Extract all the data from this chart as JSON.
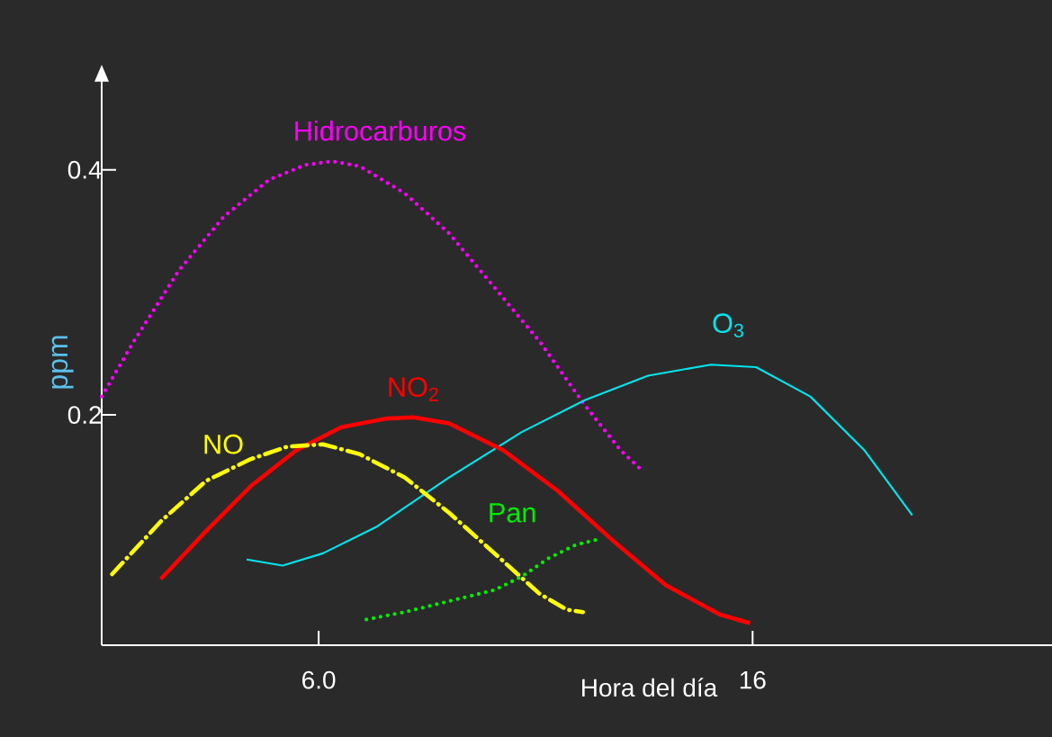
{
  "chart_data": {
    "type": "line",
    "xlabel": "Hora del día",
    "ylabel": "ppm",
    "xlim": [
      1,
      22.9
    ],
    "ylim": [
      0.012,
      0.474
    ],
    "xticks": [
      {
        "value": 6,
        "label": "6.0"
      },
      16
    ],
    "yticks": [
      0.2,
      0.4
    ],
    "series": [
      {
        "name": "Hidrocarburos",
        "color": "#ff00ff",
        "line_style": "dotted",
        "x": [
          1.0,
          1.74,
          2.78,
          3.82,
          4.86,
          5.69,
          6.31,
          6.94,
          7.98,
          9.01,
          10.05,
          11.09,
          12.13,
          12.96,
          13.44
        ],
        "values": [
          0.215,
          0.26,
          0.318,
          0.362,
          0.392,
          0.404,
          0.407,
          0.403,
          0.381,
          0.348,
          0.304,
          0.26,
          0.208,
          0.171,
          0.155
        ]
      },
      {
        "name": "O$_{3}$",
        "color": "#00e5ee",
        "line_style": "solid",
        "x": [
          4.34,
          5.17,
          6.1,
          7.35,
          9.01,
          10.68,
          12.13,
          13.59,
          15.04,
          16.08,
          17.33,
          18.58,
          19.68
        ],
        "values": [
          0.082,
          0.077,
          0.087,
          0.109,
          0.149,
          0.186,
          0.212,
          0.232,
          0.241,
          0.239,
          0.215,
          0.171,
          0.118
        ]
      },
      {
        "name": "NO$_{2}$",
        "color": "#ff0000",
        "line_style": "solid",
        "x": [
          2.36,
          3.4,
          4.44,
          5.48,
          6.52,
          7.56,
          8.18,
          9.01,
          10.26,
          11.51,
          12.76,
          14.0,
          15.25,
          15.94
        ],
        "values": [
          0.066,
          0.105,
          0.142,
          0.171,
          0.19,
          0.197,
          0.198,
          0.193,
          0.171,
          0.138,
          0.098,
          0.061,
          0.037,
          0.03
        ]
      },
      {
        "name": "NO",
        "color": "#ffff00",
        "line_style": "dashdot",
        "x": [
          1.24,
          2.36,
          3.4,
          4.44,
          5.27,
          6.1,
          6.94,
          7.98,
          9.01,
          10.05,
          11.09,
          11.72,
          12.09
        ],
        "values": [
          0.07,
          0.113,
          0.146,
          0.164,
          0.174,
          0.176,
          0.168,
          0.149,
          0.12,
          0.087,
          0.054,
          0.041,
          0.039
        ]
      },
      {
        "name": "Pan",
        "color": "#00ee00",
        "line_style": "dotted",
        "x": [
          7.1,
          7.98,
          9.01,
          10.05,
          10.68,
          11.3,
          11.93,
          12.51
        ],
        "values": [
          0.033,
          0.039,
          0.048,
          0.057,
          0.068,
          0.083,
          0.094,
          0.099
        ]
      }
    ]
  }
}
